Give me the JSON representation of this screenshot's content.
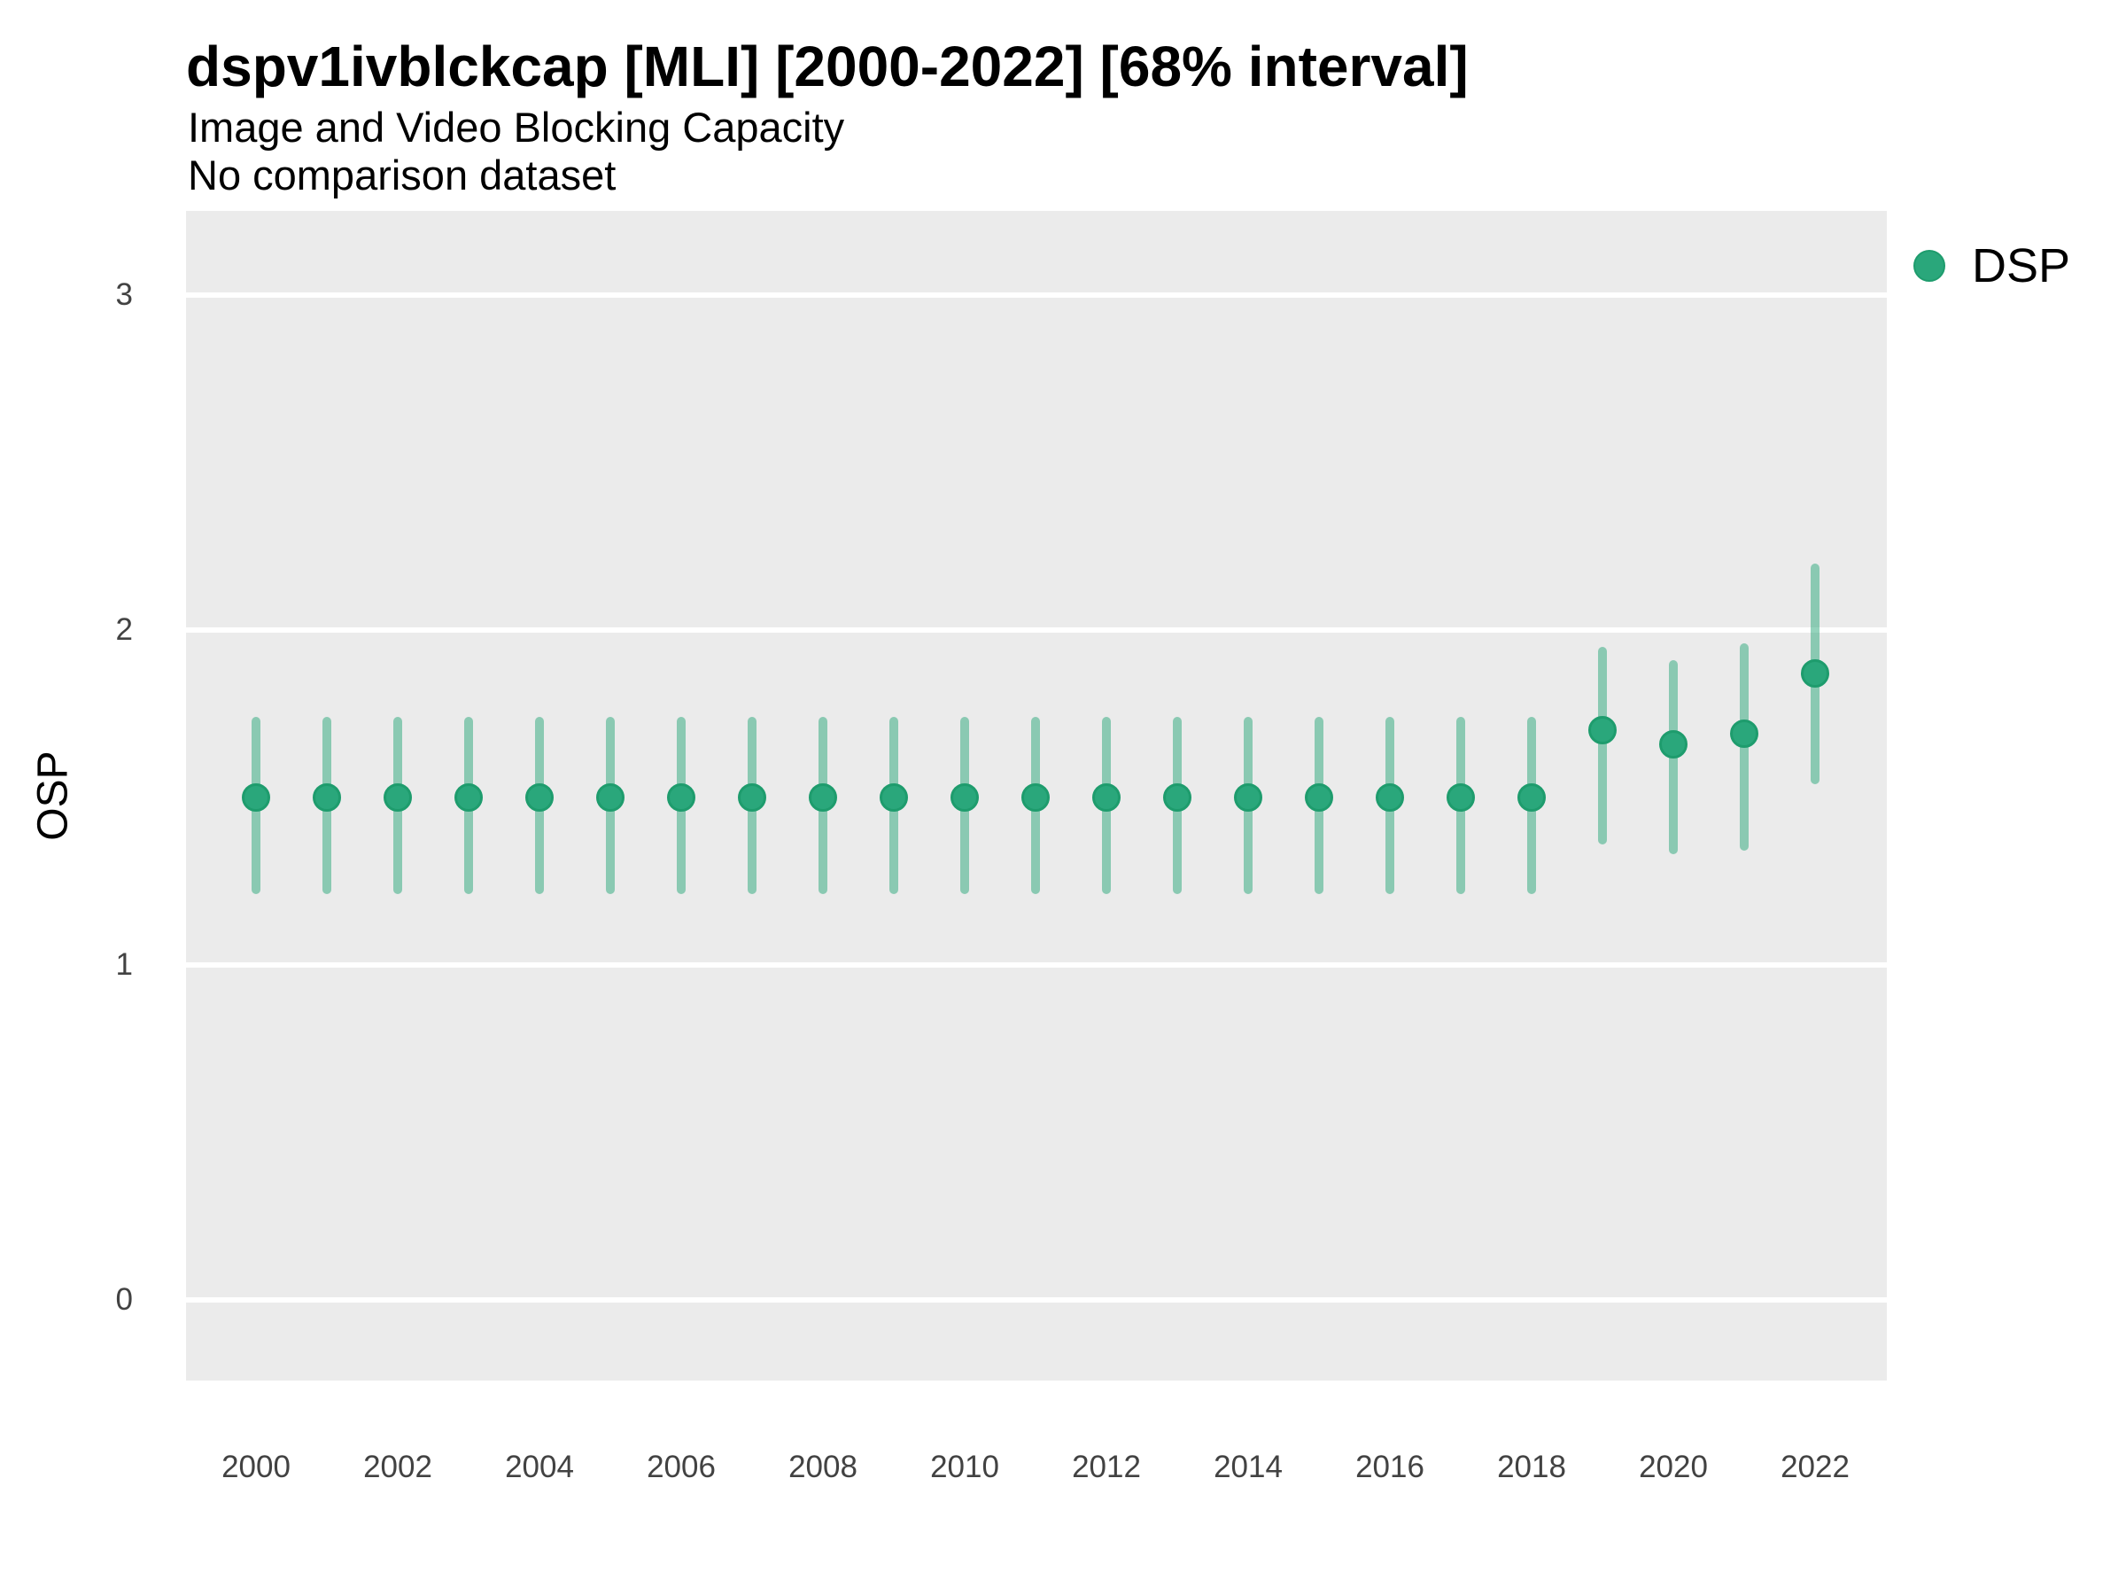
{
  "header": {
    "title": "dspv1ivblckcap [MLI] [2000-2022] [68% interval]",
    "subtitle1": "Image and Video Blocking Capacity",
    "subtitle2": "No comparison dataset"
  },
  "axes": {
    "y": {
      "label": "OSP",
      "ticks": [
        "0",
        "1",
        "2",
        "3"
      ],
      "tick_values": [
        0,
        1,
        2,
        3
      ]
    },
    "x": {
      "ticks": [
        "2000",
        "2002",
        "2004",
        "2006",
        "2008",
        "2010",
        "2012",
        "2014",
        "2016",
        "2018",
        "2020",
        "2022"
      ],
      "tick_values": [
        2000,
        2002,
        2004,
        2006,
        2008,
        2010,
        2012,
        2014,
        2016,
        2018,
        2020,
        2022
      ]
    }
  },
  "legend": {
    "position": "right",
    "items": [
      {
        "label": "DSP",
        "color": "#2aa77b"
      }
    ]
  },
  "style": {
    "panel_background": "#ebebeb",
    "grid_color": "#ffffff",
    "point_fill": "#2aa77b",
    "point_stroke": "#1e9c6d",
    "interval_color": "rgba(42,167,122,0.5)",
    "text_color": "#000000",
    "tick_text_color": "#424242"
  },
  "chart_data": {
    "type": "scatter",
    "variant": "pointrange",
    "error_bars": true,
    "interval_label": "68% interval",
    "title": "dspv1ivblckcap [MLI] [2000-2022] [68% interval]",
    "subtitle": "Image and Video Blocking Capacity",
    "note": "No comparison dataset",
    "xlabel": "",
    "ylabel": "OSP",
    "xlim": [
      1999,
      2023
    ],
    "ylim": [
      0,
      3
    ],
    "grid": true,
    "legend_position": "right",
    "series": [
      {
        "name": "DSP",
        "points": [
          {
            "year": 2000,
            "low": 1.21,
            "mid": 1.5,
            "high": 1.74
          },
          {
            "year": 2001,
            "low": 1.21,
            "mid": 1.5,
            "high": 1.74
          },
          {
            "year": 2002,
            "low": 1.21,
            "mid": 1.5,
            "high": 1.74
          },
          {
            "year": 2003,
            "low": 1.21,
            "mid": 1.5,
            "high": 1.74
          },
          {
            "year": 2004,
            "low": 1.21,
            "mid": 1.5,
            "high": 1.74
          },
          {
            "year": 2005,
            "low": 1.21,
            "mid": 1.5,
            "high": 1.74
          },
          {
            "year": 2006,
            "low": 1.21,
            "mid": 1.5,
            "high": 1.74
          },
          {
            "year": 2007,
            "low": 1.21,
            "mid": 1.5,
            "high": 1.74
          },
          {
            "year": 2008,
            "low": 1.21,
            "mid": 1.5,
            "high": 1.74
          },
          {
            "year": 2009,
            "low": 1.21,
            "mid": 1.5,
            "high": 1.74
          },
          {
            "year": 2010,
            "low": 1.21,
            "mid": 1.5,
            "high": 1.74
          },
          {
            "year": 2011,
            "low": 1.21,
            "mid": 1.5,
            "high": 1.74
          },
          {
            "year": 2012,
            "low": 1.21,
            "mid": 1.5,
            "high": 1.74
          },
          {
            "year": 2013,
            "low": 1.21,
            "mid": 1.5,
            "high": 1.74
          },
          {
            "year": 2014,
            "low": 1.21,
            "mid": 1.5,
            "high": 1.74
          },
          {
            "year": 2015,
            "low": 1.21,
            "mid": 1.5,
            "high": 1.74
          },
          {
            "year": 2016,
            "low": 1.21,
            "mid": 1.5,
            "high": 1.74
          },
          {
            "year": 2017,
            "low": 1.21,
            "mid": 1.5,
            "high": 1.74
          },
          {
            "year": 2018,
            "low": 1.21,
            "mid": 1.5,
            "high": 1.74
          },
          {
            "year": 2019,
            "low": 1.36,
            "mid": 1.7,
            "high": 1.95
          },
          {
            "year": 2020,
            "low": 1.33,
            "mid": 1.66,
            "high": 1.91
          },
          {
            "year": 2021,
            "low": 1.34,
            "mid": 1.69,
            "high": 1.96
          },
          {
            "year": 2022,
            "low": 1.54,
            "mid": 1.87,
            "high": 2.2
          }
        ]
      }
    ]
  }
}
